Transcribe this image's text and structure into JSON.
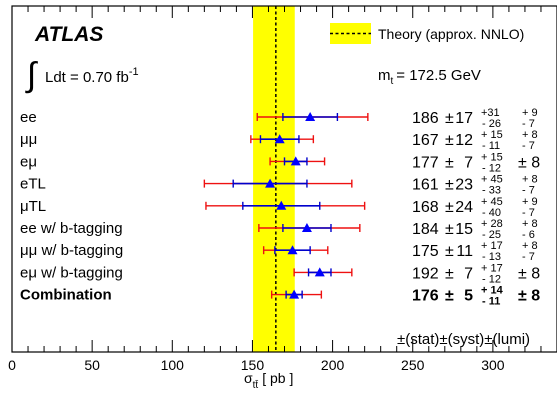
{
  "chart_data": {
    "type": "scatter",
    "experiment": "ATLAS",
    "luminosity_label": "Ldt = 0.70 fb",
    "luminosity_superscript": "-1",
    "top_mass_label": "m",
    "top_mass_subscript": "t",
    "top_mass_value": "= 172.5 GeV",
    "legend": {
      "label": "Theory (approx. NNLO)",
      "placement": "top-right"
    },
    "theory": {
      "central": 164.6,
      "band": [
        150.4,
        176.4
      ],
      "color": "#ffff00"
    },
    "xlabel": "σ",
    "xlabel_subscript": "tt̄",
    "xlabel_unit": "[ pb ]",
    "xlim": [
      0,
      340
    ],
    "xticks": [
      0,
      50,
      100,
      150,
      200,
      250,
      300
    ],
    "errors_footer": "±(stat)±(syst)±(lumi)",
    "colors": {
      "marker": "#0000ff",
      "stat": "#0000cc",
      "total": "#ee1111"
    },
    "channels": [
      {
        "name": "ee",
        "value": 186,
        "stat_lo": 17,
        "stat_hi": 17,
        "tot_lo": 33,
        "tot_hi": 36,
        "central_text": "186",
        "stat_text": "17",
        "syst_up": "+31",
        "syst_dn": "- 26",
        "lumi_up": "+ 9",
        "lumi_dn": "- 7",
        "lumi_sym": "",
        "bold": false
      },
      {
        "name": "μμ",
        "value": 167,
        "stat_lo": 12,
        "stat_hi": 12,
        "tot_lo": 18,
        "tot_hi": 21,
        "central_text": "167",
        "stat_text": "12",
        "syst_up": "+ 15",
        "syst_dn": "- 11",
        "lumi_up": "+ 8",
        "lumi_dn": "- 7",
        "lumi_sym": "",
        "bold": false
      },
      {
        "name": "eμ",
        "value": 177,
        "stat_lo": 7,
        "stat_hi": 7,
        "tot_lo": 16,
        "tot_hi": 18,
        "central_text": "177",
        "stat_text": "7",
        "syst_up": "+ 15",
        "syst_dn": "- 12",
        "lumi_up": "",
        "lumi_dn": "",
        "lumi_sym": "± 8",
        "bold": false
      },
      {
        "name": "eTL",
        "value": 161,
        "stat_lo": 23,
        "stat_hi": 23,
        "tot_lo": 41,
        "tot_hi": 51,
        "central_text": "161",
        "stat_text": "23",
        "syst_up": "+ 45",
        "syst_dn": "- 33",
        "lumi_up": "+ 8",
        "lumi_dn": "- 7",
        "lumi_sym": "",
        "bold": false
      },
      {
        "name": "μTL",
        "value": 168,
        "stat_lo": 24,
        "stat_hi": 24,
        "tot_lo": 47,
        "tot_hi": 52,
        "central_text": "168",
        "stat_text": "24",
        "syst_up": "+ 45",
        "syst_dn": "- 40",
        "lumi_up": "+ 9",
        "lumi_dn": "- 7",
        "lumi_sym": "",
        "bold": false
      },
      {
        "name": "ee w/ b-tagging",
        "value": 184,
        "stat_lo": 15,
        "stat_hi": 15,
        "tot_lo": 30,
        "tot_hi": 33,
        "central_text": "184",
        "stat_text": "15",
        "syst_up": "+ 28",
        "syst_dn": "- 25",
        "lumi_up": "+ 8",
        "lumi_dn": "- 6",
        "lumi_sym": "",
        "bold": false
      },
      {
        "name": "μμ w/ b-tagging",
        "value": 175,
        "stat_lo": 11,
        "stat_hi": 11,
        "tot_lo": 18,
        "tot_hi": 22,
        "central_text": "175",
        "stat_text": "11",
        "syst_up": "+ 17",
        "syst_dn": "- 13",
        "lumi_up": "+ 8",
        "lumi_dn": "- 7",
        "lumi_sym": "",
        "bold": false
      },
      {
        "name": "eμ w/ b-tagging",
        "value": 192,
        "stat_lo": 7,
        "stat_hi": 7,
        "tot_lo": 16,
        "tot_hi": 20,
        "central_text": "192",
        "stat_text": "7",
        "syst_up": "+ 17",
        "syst_dn": "- 12",
        "lumi_up": "",
        "lumi_dn": "",
        "lumi_sym": "± 8",
        "bold": false
      },
      {
        "name": "Combination",
        "value": 176,
        "stat_lo": 5,
        "stat_hi": 5,
        "tot_lo": 14,
        "tot_hi": 17,
        "central_text": "176",
        "stat_text": "5",
        "syst_up": "+ 14",
        "syst_dn": "- 11",
        "lumi_up": "",
        "lumi_dn": "",
        "lumi_sym": "± 8",
        "bold": true
      }
    ]
  }
}
